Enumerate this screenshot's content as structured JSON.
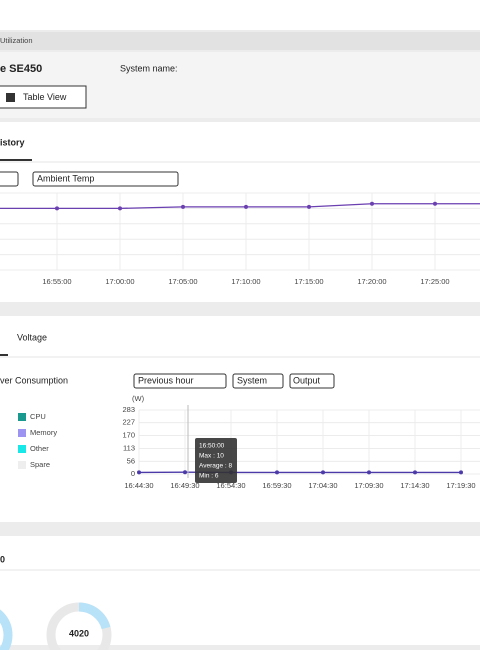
{
  "header": {
    "breadcrumb": "Utilization",
    "device": "e SE450",
    "system_name_label": "System name:",
    "table_view_button": "Table View"
  },
  "history_panel": {
    "tab": "istory",
    "metric_select": "Ambient Temp",
    "chart_data": {
      "type": "line",
      "categories": [
        "00",
        "16:55:00",
        "17:00:00",
        "17:05:00",
        "17:10:00",
        "17:15:00",
        "17:20:00",
        "17:25:00"
      ],
      "series": [
        {
          "color": "#6a3fb0",
          "values": [
            20,
            20,
            20,
            20.5,
            20.5,
            20.5,
            21.5,
            21.5
          ]
        }
      ],
      "ylim": [
        0,
        25
      ],
      "grid": true
    }
  },
  "power_panel": {
    "tab": "Voltage",
    "title": "ver Consumption",
    "range_select": "Previous hour",
    "scope_select": "System",
    "mode_select": "Output",
    "legend": [
      {
        "name": "CPU",
        "color": "#1a9a8f"
      },
      {
        "name": "Memory",
        "color": "#9c94f0"
      },
      {
        "name": "Other",
        "color": "#19e8e8"
      },
      {
        "name": "Spare",
        "color": "#eeeeee"
      }
    ],
    "chart_data": {
      "type": "line",
      "y_unit": "(W)",
      "categories": [
        "16:44:30",
        "16:49:30",
        "16:54:30",
        "16:59:30",
        "17:04:30",
        "17:09:30",
        "17:14:30",
        "17:19:30"
      ],
      "series": [
        {
          "color": "#4b3aa8",
          "values": [
            7,
            8,
            7,
            7,
            7,
            7,
            7,
            7
          ]
        }
      ],
      "ylim": [
        0,
        283
      ],
      "yticks": [
        0,
        56,
        113,
        170,
        227,
        283
      ],
      "grid": true,
      "tooltip": {
        "time": "16:50:00",
        "max": "Max : 10",
        "average": "Average : 8",
        "min": "Min : 6"
      }
    }
  },
  "bottom_panel": {
    "title": "0",
    "gauge_value": "4020"
  }
}
